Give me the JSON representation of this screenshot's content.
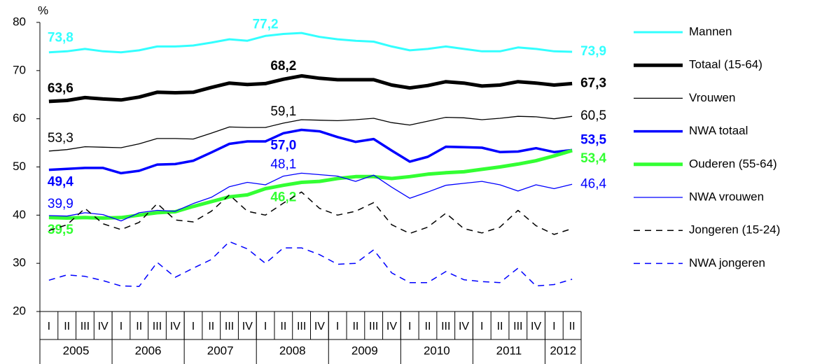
{
  "chart_data": {
    "type": "line",
    "y_unit": "%",
    "categories": [
      "I",
      "II",
      "III",
      "IV",
      "I",
      "II",
      "III",
      "IV",
      "I",
      "II",
      "III",
      "IV",
      "I",
      "II",
      "III",
      "IV",
      "I",
      "II",
      "III",
      "IV",
      "I",
      "II",
      "III",
      "IV",
      "I",
      "II",
      "III",
      "IV",
      "I",
      "II"
    ],
    "category_groups": [
      {
        "label": "2005",
        "span": 4
      },
      {
        "label": "2006",
        "span": 4
      },
      {
        "label": "2007",
        "span": 4
      },
      {
        "label": "2008",
        "span": 4
      },
      {
        "label": "2009",
        "span": 4
      },
      {
        "label": "2010",
        "span": 4
      },
      {
        "label": "2011",
        "span": 4
      },
      {
        "label": "2012",
        "span": 2
      }
    ],
    "ylim": [
      20,
      80
    ],
    "yticks": [
      20,
      30,
      40,
      50,
      60,
      70,
      80
    ],
    "series": [
      {
        "name": "Mannen",
        "color": "#33ffff",
        "line_width": 3,
        "dashed": false,
        "bold_labels": true,
        "values": [
          73.8,
          74.0,
          74.5,
          74.0,
          73.8,
          74.2,
          75.0,
          75.0,
          75.2,
          75.8,
          76.5,
          76.2,
          77.2,
          77.6,
          77.8,
          77.0,
          76.5,
          76.2,
          76.0,
          75.0,
          74.2,
          74.5,
          75.0,
          74.5,
          74.0,
          74.0,
          74.8,
          74.5,
          74.0,
          73.9
        ],
        "value_labels": [
          "73,8",
          null,
          null,
          null,
          null,
          null,
          null,
          null,
          null,
          null,
          null,
          null,
          "77,2",
          null,
          null,
          null,
          null,
          null,
          null,
          null,
          null,
          null,
          null,
          null,
          null,
          null,
          null,
          null,
          null,
          "73,9"
        ]
      },
      {
        "name": "Totaal (15-64)",
        "color": "#000000",
        "line_width": 5,
        "dashed": false,
        "bold_labels": true,
        "values": [
          63.6,
          63.8,
          64.4,
          64.1,
          63.9,
          64.5,
          65.5,
          65.4,
          65.5,
          66.5,
          67.4,
          67.1,
          67.3,
          68.2,
          68.9,
          68.4,
          68.1,
          68.1,
          68.1,
          67.0,
          66.4,
          66.9,
          67.7,
          67.4,
          66.8,
          67.0,
          67.7,
          67.4,
          67.0,
          67.3
        ],
        "value_labels": [
          "63,6",
          null,
          null,
          null,
          null,
          null,
          null,
          null,
          null,
          null,
          null,
          null,
          null,
          "68,2",
          null,
          null,
          null,
          null,
          null,
          null,
          null,
          null,
          null,
          null,
          null,
          null,
          null,
          null,
          null,
          "67,3"
        ]
      },
      {
        "name": "Vrouwen",
        "color": "#000000",
        "line_width": 1.3,
        "dashed": false,
        "bold_labels": false,
        "values": [
          53.3,
          53.6,
          54.2,
          54.1,
          54.0,
          54.8,
          55.9,
          55.9,
          55.8,
          57.0,
          58.3,
          58.2,
          58.2,
          59.1,
          59.8,
          59.7,
          59.6,
          59.8,
          60.1,
          59.2,
          58.7,
          59.5,
          60.3,
          60.2,
          59.8,
          60.1,
          60.5,
          60.4,
          60.0,
          60.5
        ],
        "value_labels": [
          "53,3",
          null,
          null,
          null,
          null,
          null,
          null,
          null,
          null,
          null,
          null,
          null,
          null,
          "59,1",
          null,
          null,
          null,
          null,
          null,
          null,
          null,
          null,
          null,
          null,
          null,
          null,
          null,
          null,
          null,
          "60,5"
        ]
      },
      {
        "name": "NWA totaal",
        "color": "#0000ff",
        "line_width": 3.5,
        "dashed": false,
        "bold_labels": true,
        "values": [
          49.4,
          49.6,
          49.8,
          49.8,
          48.7,
          49.2,
          50.5,
          50.6,
          51.3,
          53.0,
          54.8,
          55.3,
          55.3,
          57.0,
          57.7,
          57.4,
          56.2,
          55.2,
          55.8,
          53.4,
          51.1,
          52.1,
          54.2,
          54.1,
          54.0,
          53.1,
          53.2,
          53.9,
          53.1,
          53.5
        ],
        "value_labels": [
          "49,4",
          null,
          null,
          null,
          null,
          null,
          null,
          null,
          null,
          null,
          null,
          null,
          null,
          "57,0",
          null,
          null,
          null,
          null,
          null,
          null,
          null,
          null,
          null,
          null,
          null,
          null,
          null,
          null,
          null,
          "53,5"
        ]
      },
      {
        "name": "Ouderen (55-64)",
        "color": "#33ff33",
        "line_width": 5,
        "dashed": false,
        "bold_labels": true,
        "values": [
          39.5,
          39.4,
          39.5,
          39.4,
          39.5,
          40.0,
          40.5,
          40.7,
          41.8,
          42.8,
          43.8,
          44.2,
          45.5,
          46.2,
          46.8,
          47.0,
          47.6,
          48.0,
          48.0,
          47.6,
          48.0,
          48.5,
          48.8,
          49.0,
          49.5,
          50.0,
          50.6,
          51.3,
          52.3,
          53.4
        ],
        "value_labels": [
          "39,5",
          null,
          null,
          null,
          null,
          null,
          null,
          null,
          null,
          null,
          null,
          null,
          null,
          "46,2",
          null,
          null,
          null,
          null,
          null,
          null,
          null,
          null,
          null,
          null,
          null,
          null,
          null,
          null,
          null,
          "53,4"
        ]
      },
      {
        "name": "NWA vrouwen",
        "color": "#0000ff",
        "line_width": 1.3,
        "dashed": false,
        "bold_labels": false,
        "values": [
          39.9,
          39.8,
          40.5,
          40.1,
          38.8,
          40.5,
          41.0,
          40.8,
          42.4,
          43.7,
          45.9,
          46.8,
          46.3,
          48.1,
          48.7,
          48.4,
          48.1,
          47.0,
          48.3,
          45.8,
          43.5,
          44.8,
          46.2,
          46.6,
          47.0,
          46.3,
          45.0,
          46.3,
          45.5,
          46.4
        ],
        "value_labels": [
          "39,9",
          null,
          null,
          null,
          null,
          null,
          null,
          null,
          null,
          null,
          null,
          null,
          null,
          "48,1",
          null,
          null,
          null,
          null,
          null,
          null,
          null,
          null,
          null,
          null,
          null,
          null,
          null,
          null,
          null,
          "46,4"
        ]
      },
      {
        "name": "Jongeren (15-24)",
        "color": "#000000",
        "line_width": 1.5,
        "dashed": true,
        "bold_labels": false,
        "values": [
          36.8,
          38.0,
          41.4,
          38.2,
          37.0,
          38.5,
          42.4,
          39.0,
          38.6,
          40.8,
          44.2,
          40.8,
          40.0,
          42.5,
          44.8,
          41.4,
          40.0,
          40.8,
          42.6,
          38.0,
          36.2,
          37.5,
          40.4,
          37.2,
          36.3,
          37.5,
          41.0,
          37.8,
          36.0,
          37.2
        ]
      },
      {
        "name": "NWA jongeren",
        "color": "#0000ff",
        "line_width": 1.5,
        "dashed": true,
        "bold_labels": false,
        "values": [
          26.5,
          27.6,
          27.3,
          26.4,
          25.3,
          25.2,
          30.2,
          27.1,
          29.0,
          30.8,
          34.5,
          33.0,
          30.0,
          33.2,
          33.2,
          31.8,
          29.8,
          30.0,
          32.8,
          28.0,
          26.0,
          26.0,
          28.3,
          26.6,
          26.2,
          26.0,
          29.0,
          25.3,
          25.6,
          26.7
        ]
      }
    ]
  }
}
